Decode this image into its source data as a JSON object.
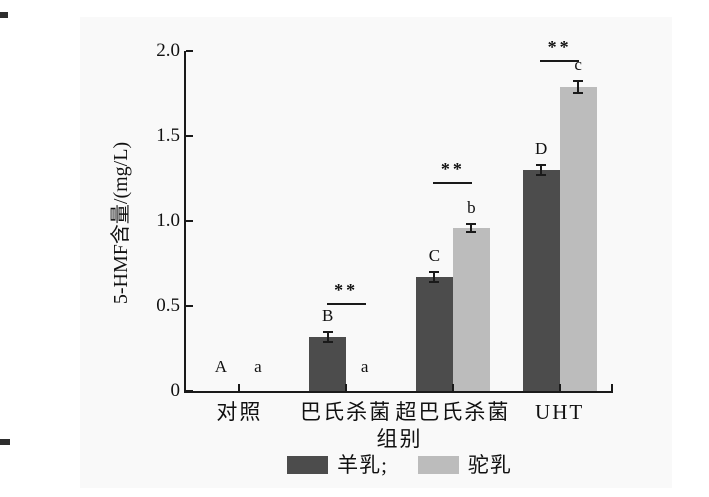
{
  "figure": {
    "background": "#ffffff",
    "scan_area_color": "#f9f9f9",
    "axis_color": "#1a1a1a"
  },
  "chart_data": {
    "type": "bar",
    "title": "",
    "xlabel": "组别",
    "ylabel": "5-HMF含量/(mg/L)",
    "ylim": [
      0,
      2.0
    ],
    "yticks": [
      0,
      0.5,
      1.0,
      1.5,
      2.0
    ],
    "ytick_labels": [
      "0",
      "0.5",
      "1.0",
      "1.5",
      "2.0"
    ],
    "categories": [
      "对照",
      "巴氏杀菌",
      "超巴氏杀菌",
      "UHT"
    ],
    "series": [
      {
        "name": "羊乳",
        "color": "#4c4c4c",
        "values": [
          0,
          0.32,
          0.67,
          1.3
        ],
        "errors": [
          0,
          0.03,
          0.03,
          0.03
        ],
        "letters": [
          "A",
          "B",
          "C",
          "D"
        ]
      },
      {
        "name": "驼乳",
        "color": "#bcbcbc",
        "values": [
          0,
          0,
          0.96,
          1.79
        ],
        "errors": [
          0,
          0,
          0.025,
          0.035
        ],
        "letters": [
          "a",
          "a",
          "b",
          "c"
        ]
      }
    ],
    "significance": [
      {
        "group_index": 1,
        "label": "**",
        "y": 0.52
      },
      {
        "group_index": 2,
        "label": "**",
        "y": 1.23
      },
      {
        "group_index": 3,
        "label": "**",
        "y": 1.95
      }
    ],
    "legend": [
      {
        "label": "羊乳;",
        "color": "#4c4c4c"
      },
      {
        "label": "驼乳",
        "color": "#bcbcbc"
      }
    ],
    "legend_position": "bottom",
    "grid": false
  }
}
